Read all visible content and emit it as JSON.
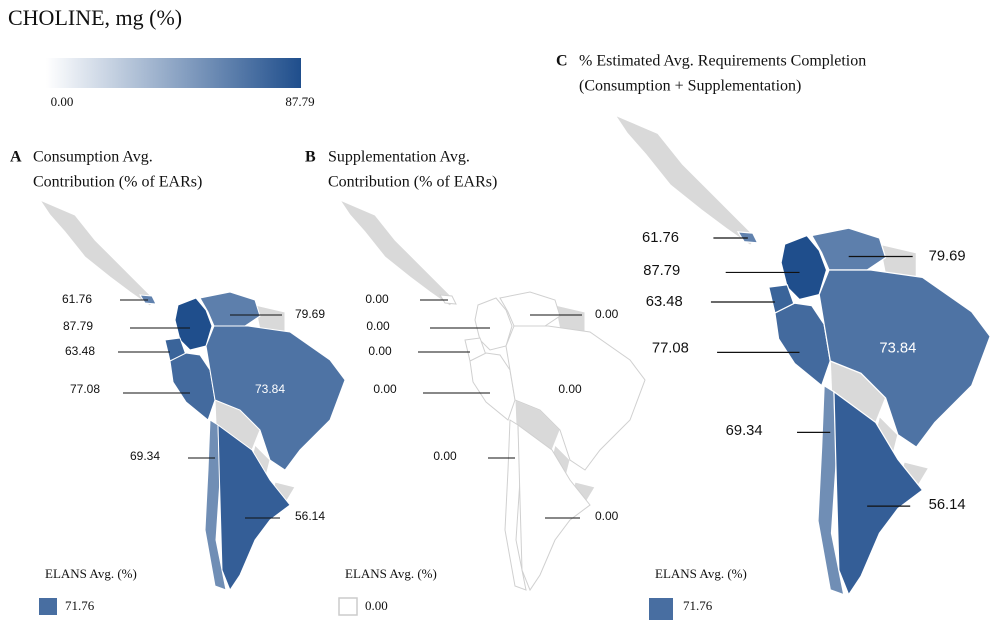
{
  "header": {
    "title": "CHOLINE, mg (%)",
    "scale_min": "0.00",
    "scale_max": "87.79"
  },
  "panels": [
    {
      "letter": "A",
      "title_lines": [
        "Consumption Avg.",
        "Contribution (% of EARs)"
      ],
      "countries": [
        {
          "value": "61.76"
        },
        {
          "value": "87.79"
        },
        {
          "value": "63.48"
        },
        {
          "value": "77.08"
        },
        {
          "value": "73.84"
        },
        {
          "value": "69.34"
        },
        {
          "value": "56.14"
        },
        {
          "value": "79.69"
        }
      ],
      "legend_title": "ELANS Avg. (%)",
      "legend_value": "71.76"
    },
    {
      "letter": "B",
      "title_lines": [
        "Supplementation Avg.",
        "Contribution (% of EARs)"
      ],
      "countries": [
        {
          "value": "0.00"
        },
        {
          "value": "0.00"
        },
        {
          "value": "0.00"
        },
        {
          "value": "0.00"
        },
        {
          "value": "0.00"
        },
        {
          "value": "0.00"
        },
        {
          "value": "0.00"
        },
        {
          "value": "0.00"
        }
      ],
      "legend_title": "ELANS Avg. (%)",
      "legend_value": "0.00"
    },
    {
      "letter": "C",
      "title_lines": [
        "% Estimated Avg. Requirements Completion",
        "(Consumption + Supplementation)"
      ],
      "countries": [
        {
          "value": "61.76"
        },
        {
          "value": "87.79"
        },
        {
          "value": "63.48"
        },
        {
          "value": "77.08"
        },
        {
          "value": "73.84"
        },
        {
          "value": "69.34"
        },
        {
          "value": "56.14"
        },
        {
          "value": "79.69"
        }
      ],
      "legend_title": "ELANS Avg. (%)",
      "legend_value": "71.76"
    }
  ]
}
